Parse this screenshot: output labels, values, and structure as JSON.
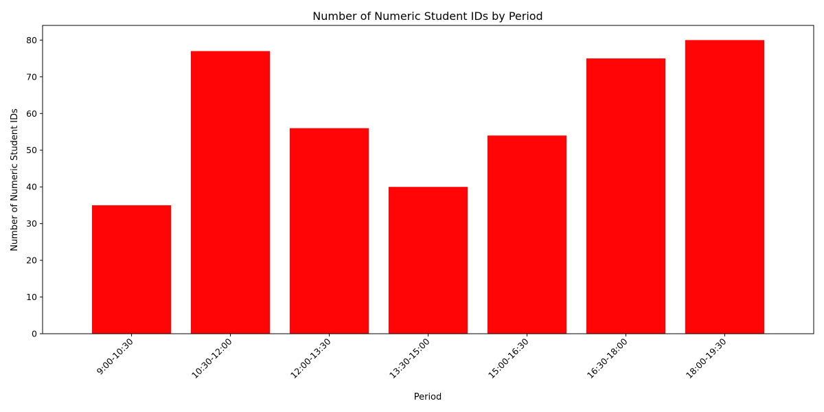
{
  "chart_data": {
    "type": "bar",
    "title": "Number of Numeric Student IDs by Period",
    "xlabel": "Period",
    "ylabel": "Number of Numeric Student IDs",
    "categories": [
      "9:00-10:30",
      "10:30-12:00",
      "12:00-13:30",
      "13:30-15:00",
      "15:00-16:30",
      "16:30-18:00",
      "18:00-19:30"
    ],
    "values": [
      35,
      77,
      56,
      40,
      54,
      75,
      80
    ],
    "ylim": [
      0,
      84
    ],
    "yticks": [
      0,
      10,
      20,
      30,
      40,
      50,
      60,
      70,
      80
    ],
    "bar_color": "#ff0505",
    "grid": false,
    "legend": "none",
    "x_tick_rotation": "45 degrees"
  }
}
